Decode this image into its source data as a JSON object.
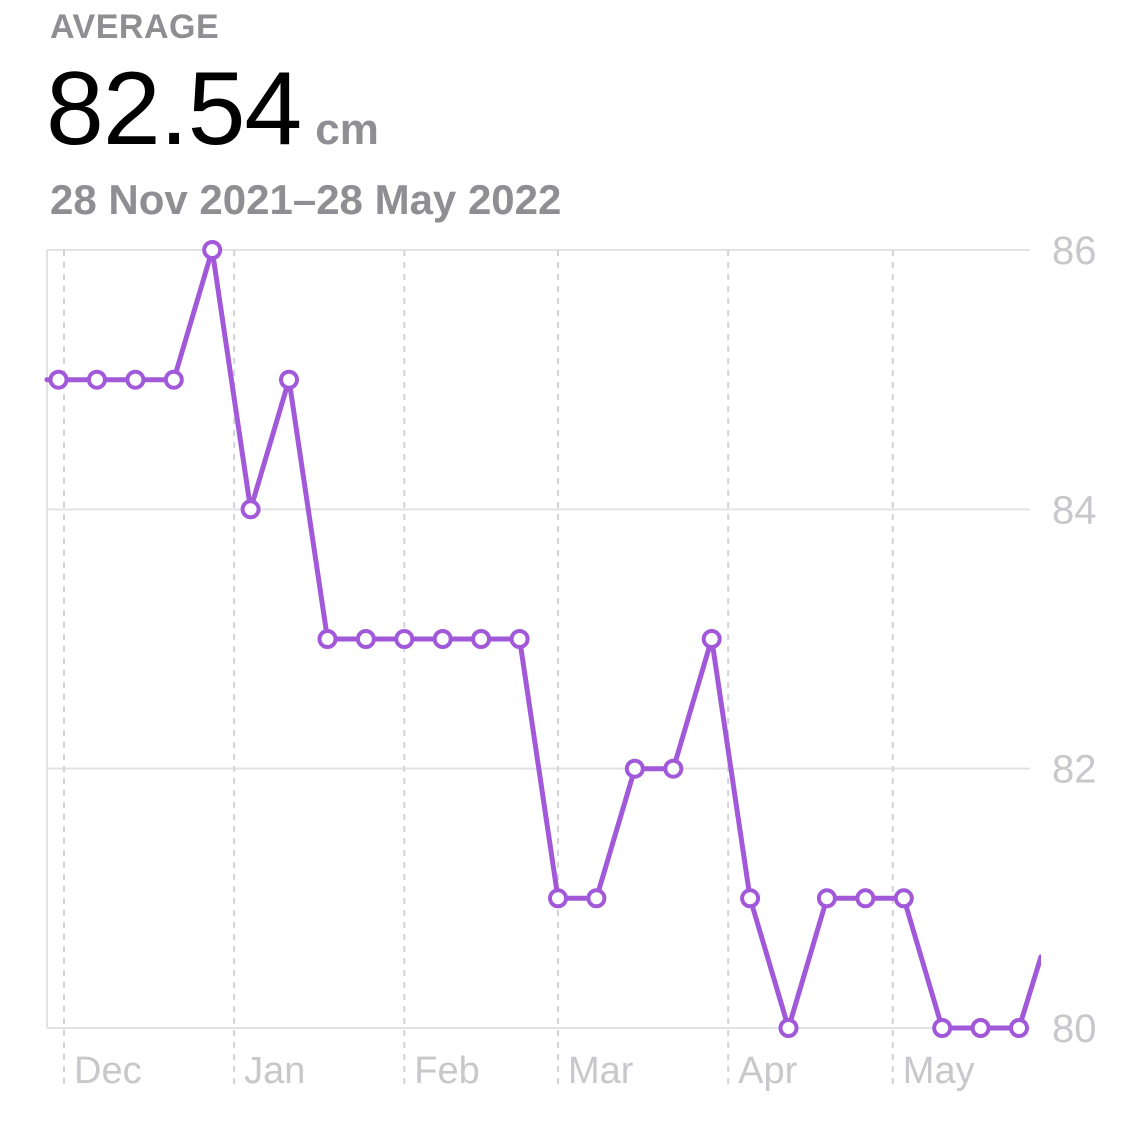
{
  "summary": {
    "label": "AVERAGE",
    "value": "82.54",
    "unit": "cm",
    "range": "28 Nov 2021–28 May 2022"
  },
  "colors": {
    "line": "#a259d9",
    "point_fill": "#ffffff",
    "grid": "#e3e3e6",
    "tick_text": "#c7c7cc",
    "month_line": "#d4d4d8"
  },
  "chart_data": {
    "type": "line",
    "title": "",
    "xlabel": "",
    "ylabel": "",
    "ylim": [
      80,
      86
    ],
    "yticks": [
      86,
      84,
      82,
      80
    ],
    "x_range": [
      "2021-11-28",
      "2022-05-28"
    ],
    "months": [
      {
        "label": "Dec",
        "date": "2021-12-01"
      },
      {
        "label": "Jan",
        "date": "2022-01-01"
      },
      {
        "label": "Feb",
        "date": "2022-02-01"
      },
      {
        "label": "Mar",
        "date": "2022-03-01"
      },
      {
        "label": "Apr",
        "date": "2022-04-01"
      },
      {
        "label": "May",
        "date": "2022-05-01"
      }
    ],
    "series": [
      {
        "points": [
          {
            "x": "2021-11-30",
            "y": 85
          },
          {
            "x": "2021-12-07",
            "y": 85
          },
          {
            "x": "2021-12-14",
            "y": 85
          },
          {
            "x": "2021-12-21",
            "y": 85
          },
          {
            "x": "2021-12-28",
            "y": 86
          },
          {
            "x": "2022-01-04",
            "y": 84
          },
          {
            "x": "2022-01-11",
            "y": 85
          },
          {
            "x": "2022-01-18",
            "y": 83
          },
          {
            "x": "2022-01-25",
            "y": 83
          },
          {
            "x": "2022-02-01",
            "y": 83
          },
          {
            "x": "2022-02-08",
            "y": 83
          },
          {
            "x": "2022-02-15",
            "y": 83
          },
          {
            "x": "2022-02-22",
            "y": 83
          },
          {
            "x": "2022-03-01",
            "y": 81
          },
          {
            "x": "2022-03-08",
            "y": 81
          },
          {
            "x": "2022-03-15",
            "y": 82
          },
          {
            "x": "2022-03-22",
            "y": 82
          },
          {
            "x": "2022-03-29",
            "y": 83
          },
          {
            "x": "2022-04-05",
            "y": 81
          },
          {
            "x": "2022-04-12",
            "y": 80
          },
          {
            "x": "2022-04-19",
            "y": 81
          },
          {
            "x": "2022-04-26",
            "y": 81
          },
          {
            "x": "2022-05-03",
            "y": 81
          },
          {
            "x": "2022-05-10",
            "y": 80
          },
          {
            "x": "2022-05-17",
            "y": 80
          },
          {
            "x": "2022-05-24",
            "y": 80
          }
        ]
      }
    ]
  }
}
